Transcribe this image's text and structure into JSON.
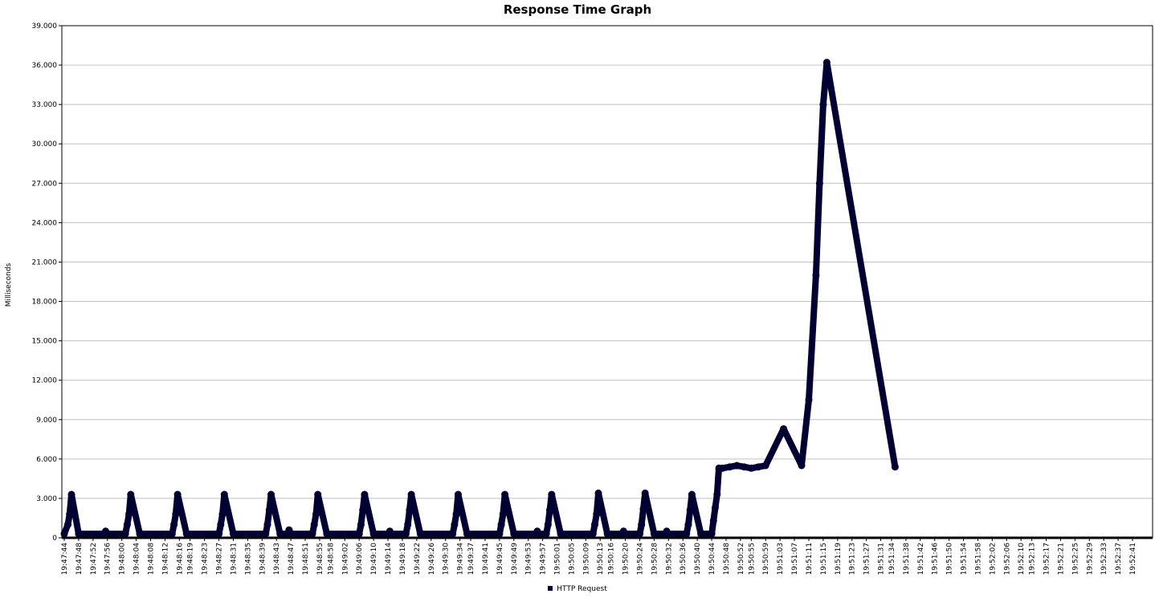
{
  "chart_data": {
    "type": "line",
    "title": "Response Time Graph",
    "xlabel": "",
    "ylabel": "Milliseconds",
    "ylim": [
      0,
      39000
    ],
    "yticks": [
      "0",
      "3.000",
      "6.000",
      "9.000",
      "12.000",
      "15.000",
      "18.000",
      "21.000",
      "24.000",
      "27.000",
      "30.000",
      "33.000",
      "36.000",
      "39.000"
    ],
    "ytick_values": [
      0,
      3000,
      6000,
      9000,
      12000,
      15000,
      18000,
      21000,
      24000,
      27000,
      30000,
      33000,
      36000,
      39000
    ],
    "x_ticks": [
      "19:47:44",
      "19:47:48",
      "19:47:52",
      "19:47:56",
      "19:48:00",
      "19:48:04",
      "19:48:08",
      "19:48:12",
      "19:48:16",
      "19:48:19",
      "19:48:23",
      "19:48:27",
      "19:48:31",
      "19:48:35",
      "19:48:39",
      "19:48:43",
      "19:48:47",
      "19:48:51",
      "19:48:55",
      "19:48:58",
      "19:49:02",
      "19:49:06",
      "19:49:10",
      "19:49:14",
      "19:49:18",
      "19:49:22",
      "19:49:26",
      "19:49:30",
      "19:49:34",
      "19:49:37",
      "19:49:41",
      "19:49:45",
      "19:49:49",
      "19:49:53",
      "19:49:57",
      "19:50:01",
      "19:50:05",
      "19:50:09",
      "19:50:13",
      "19:50:16",
      "19:50:20",
      "19:50:24",
      "19:50:28",
      "19:50:32",
      "19:50:36",
      "19:50:40",
      "19:50:44",
      "19:50:48",
      "19:50:52",
      "19:50:55",
      "19:50:59",
      "19:51:03",
      "19:51:07",
      "19:51:11",
      "19:51:15",
      "19:51:19",
      "19:51:23",
      "19:51:27",
      "19:51:31",
      "19:51:34",
      "19:51:38",
      "19:51:42",
      "19:51:46",
      "19:51:50",
      "19:51:54",
      "19:51:58",
      "19:52:02",
      "19:52:06",
      "19:52:10",
      "19:52:13",
      "19:52:17",
      "19:52:21",
      "19:52:25",
      "19:52:29",
      "19:52:33",
      "19:52:37",
      "19:52:41"
    ],
    "grid": true,
    "legend_position": "bottom",
    "series": [
      {
        "name": "HTTP Request",
        "color": "#000033",
        "points": [
          [
            "19:47:44",
            300
          ],
          [
            "19:47:45",
            1000
          ],
          [
            "19:47:45.5",
            1800
          ],
          [
            "19:47:46",
            3300
          ],
          [
            "19:47:48",
            300
          ],
          [
            "19:47:55",
            300
          ],
          [
            "19:47:55.5",
            500
          ],
          [
            "19:47:56",
            300
          ],
          [
            "19:48:01",
            300
          ],
          [
            "19:48:01.5",
            1000
          ],
          [
            "19:48:02",
            1800
          ],
          [
            "19:48:02.5",
            3300
          ],
          [
            "19:48:05",
            300
          ],
          [
            "19:48:14",
            300
          ],
          [
            "19:48:14.5",
            1000
          ],
          [
            "19:48:15",
            1800
          ],
          [
            "19:48:15.5",
            3300
          ],
          [
            "19:48:18",
            300
          ],
          [
            "19:48:27",
            300
          ],
          [
            "19:48:27.5",
            1000
          ],
          [
            "19:48:28",
            1800
          ],
          [
            "19:48:28.5",
            3300
          ],
          [
            "19:48:31",
            300
          ],
          [
            "19:48:40",
            300
          ],
          [
            "19:48:40.5",
            1000
          ],
          [
            "19:48:41",
            2100
          ],
          [
            "19:48:41.5",
            3300
          ],
          [
            "19:48:44",
            300
          ],
          [
            "19:48:46",
            300
          ],
          [
            "19:48:46.5",
            600
          ],
          [
            "19:48:47",
            300
          ],
          [
            "19:48:53",
            300
          ],
          [
            "19:48:53.5",
            1000
          ],
          [
            "19:48:54",
            1800
          ],
          [
            "19:48:54.5",
            3300
          ],
          [
            "19:48:57",
            300
          ],
          [
            "19:49:06",
            300
          ],
          [
            "19:49:06.5",
            1000
          ],
          [
            "19:49:07",
            2100
          ],
          [
            "19:49:07.5",
            3300
          ],
          [
            "19:49:10",
            300
          ],
          [
            "19:49:14",
            300
          ],
          [
            "19:49:14.5",
            500
          ],
          [
            "19:49:15",
            300
          ],
          [
            "19:49:19",
            300
          ],
          [
            "19:49:19.5",
            1000
          ],
          [
            "19:49:20",
            2100
          ],
          [
            "19:49:20.5",
            3300
          ],
          [
            "19:49:23",
            300
          ],
          [
            "19:49:32",
            300
          ],
          [
            "19:49:32.5",
            1000
          ],
          [
            "19:49:33",
            1800
          ],
          [
            "19:49:33.5",
            3300
          ],
          [
            "19:49:36",
            300
          ],
          [
            "19:49:45",
            300
          ],
          [
            "19:49:45.5",
            1000
          ],
          [
            "19:49:46",
            1800
          ],
          [
            "19:49:46.5",
            3300
          ],
          [
            "19:49:49",
            300
          ],
          [
            "19:49:55",
            300
          ],
          [
            "19:49:55.5",
            500
          ],
          [
            "19:49:56",
            300
          ],
          [
            "19:49:58",
            300
          ],
          [
            "19:49:58.5",
            1000
          ],
          [
            "19:49:59",
            2100
          ],
          [
            "19:49:59.5",
            3300
          ],
          [
            "19:50:02",
            300
          ],
          [
            "19:50:11",
            300
          ],
          [
            "19:50:11.5",
            1000
          ],
          [
            "19:50:12",
            1800
          ],
          [
            "19:50:12.5",
            3400
          ],
          [
            "19:50:15",
            300
          ],
          [
            "19:50:19",
            300
          ],
          [
            "19:50:19.5",
            500
          ],
          [
            "19:50:20",
            300
          ],
          [
            "19:50:24",
            300
          ],
          [
            "19:50:24.5",
            1000
          ],
          [
            "19:50:25",
            2200
          ],
          [
            "19:50:25.5",
            3400
          ],
          [
            "19:50:28",
            300
          ],
          [
            "19:50:31",
            300
          ],
          [
            "19:50:31.5",
            500
          ],
          [
            "19:50:32",
            300
          ],
          [
            "19:50:37",
            300
          ],
          [
            "19:50:37.5",
            1000
          ],
          [
            "19:50:38",
            2100
          ],
          [
            "19:50:38.5",
            3300
          ],
          [
            "19:50:41",
            300
          ],
          [
            "19:50:44",
            300
          ],
          [
            "19:50:44.5",
            1300
          ],
          [
            "19:50:45",
            2300
          ],
          [
            "19:50:45.5",
            3300
          ],
          [
            "19:50:46",
            5300
          ],
          [
            "19:50:47",
            5300
          ],
          [
            "19:50:49",
            5400
          ],
          [
            "19:50:51",
            5500
          ],
          [
            "19:50:53",
            5400
          ],
          [
            "19:50:55",
            5300
          ],
          [
            "19:50:57",
            5400
          ],
          [
            "19:50:59",
            5500
          ],
          [
            "19:51:04",
            8300
          ],
          [
            "19:51:09",
            5500
          ],
          [
            "19:51:11",
            10500
          ],
          [
            "19:51:13",
            20000
          ],
          [
            "19:51:14",
            27000
          ],
          [
            "19:51:15",
            33000
          ],
          [
            "19:51:16",
            36200
          ],
          [
            "19:51:35",
            5400
          ]
        ]
      }
    ]
  }
}
